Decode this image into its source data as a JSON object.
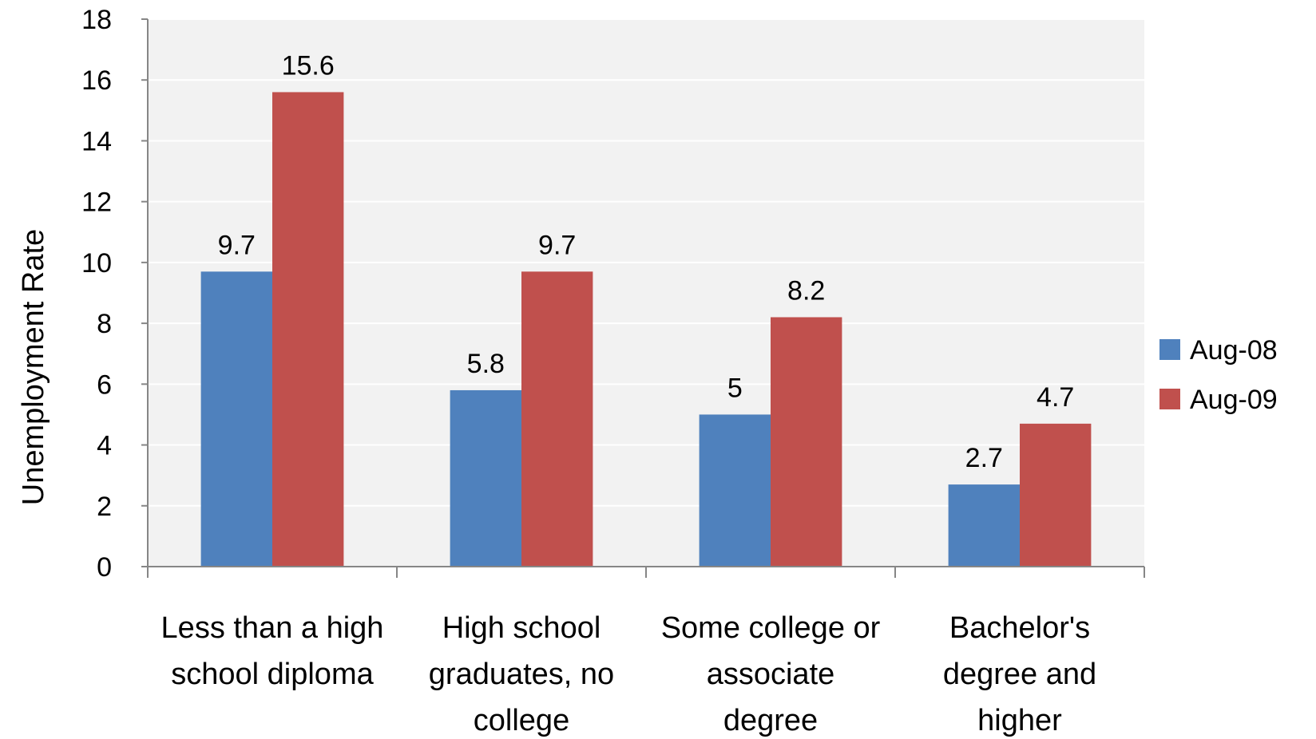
{
  "chart_data": {
    "type": "bar",
    "ylabel": "Unemployment Rate",
    "xlabel": "",
    "ylim": [
      0,
      18
    ],
    "yticks": [
      0,
      2,
      4,
      6,
      8,
      10,
      12,
      14,
      16,
      18
    ],
    "grid": true,
    "legend_position": "right",
    "categories": [
      [
        "Less than a high",
        "school diploma"
      ],
      [
        "High school",
        "graduates, no",
        "college"
      ],
      [
        "Some college or",
        "associate",
        "degree"
      ],
      [
        "Bachelor's",
        "degree and",
        "higher"
      ]
    ],
    "series": [
      {
        "name": "Aug-08",
        "color": "#4F81BD",
        "values": [
          9.7,
          5.8,
          5,
          2.7
        ]
      },
      {
        "name": "Aug-09",
        "color": "#C0504D",
        "values": [
          15.6,
          9.7,
          8.2,
          4.7
        ]
      }
    ],
    "plot_background": "#F2F2F2",
    "gridline_color": "#FFFFFF"
  }
}
